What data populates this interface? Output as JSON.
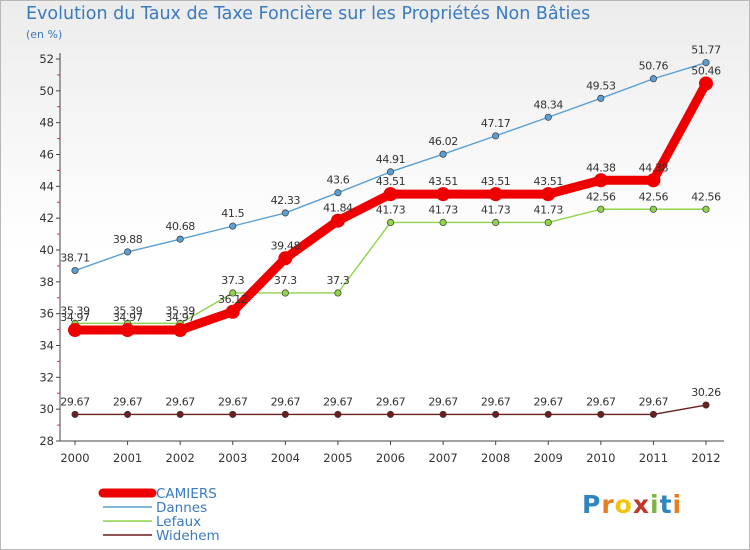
{
  "title": "Evolution du Taux de Taxe Foncière sur les Propriétés Non Bâties",
  "unit_label": "(en %)",
  "logo": {
    "text": "Proxiti",
    "letters": [
      "P",
      "r",
      "o",
      "x",
      "i",
      "t",
      "i"
    ],
    "colors": [
      "#2e86c1",
      "#e67e22",
      "#f1c40f",
      "#c0392b",
      "#7cb342",
      "#2e86c1",
      "#e67e22"
    ]
  },
  "chart_data": {
    "type": "line",
    "title": "Evolution du Taux de Taxe Foncière sur les Propriétés Non Bâties",
    "xlabel": "",
    "ylabel": "(en %)",
    "ylim": [
      28,
      52
    ],
    "yticks": [
      "28",
      "30",
      "32",
      "34",
      "36",
      "38",
      "40",
      "42",
      "44",
      "46",
      "48",
      "50",
      "52"
    ],
    "categories": [
      "2000",
      "2001",
      "2002",
      "2003",
      "2004",
      "2005",
      "2006",
      "2007",
      "2008",
      "2009",
      "2010",
      "2011",
      "2012"
    ],
    "series": [
      {
        "name": "Widehem",
        "color": "#6b1f1f",
        "values": [
          29.67,
          29.67,
          29.67,
          29.67,
          29.67,
          29.67,
          29.67,
          29.67,
          29.67,
          29.67,
          29.67,
          29.67,
          30.26
        ],
        "labels": [
          "29.67",
          "29.67",
          "29.67",
          "29.67",
          "29.67",
          "29.67",
          "29.67",
          "29.67",
          "29.67",
          "29.67",
          "29.67",
          "29.67",
          "30.26"
        ]
      },
      {
        "name": "Lefaux",
        "color": "#8fd44a",
        "values": [
          35.39,
          35.39,
          35.39,
          37.3,
          37.3,
          37.3,
          41.73,
          41.73,
          41.73,
          41.73,
          42.56,
          42.56,
          42.56
        ],
        "labels": [
          "35.39",
          "35.39",
          "35.39",
          "37.3",
          "37.3",
          "37.3",
          "41.73",
          "41.73",
          "41.73",
          "41.73",
          "42.56",
          "42.56",
          "42.56"
        ]
      },
      {
        "name": "Dannes",
        "color": "#5a9fd4",
        "values": [
          38.71,
          39.88,
          40.68,
          41.5,
          42.33,
          43.6,
          44.91,
          46.02,
          47.17,
          48.34,
          49.53,
          50.76,
          51.77
        ],
        "labels": [
          "38.71",
          "39.88",
          "40.68",
          "41.5",
          "42.33",
          "43.6",
          "44.91",
          "46.02",
          "47.17",
          "48.34",
          "49.53",
          "50.76",
          "51.77"
        ]
      },
      {
        "name": "CAMIERS",
        "color": "#ee0000",
        "values": [
          34.97,
          34.97,
          34.97,
          36.12,
          39.48,
          41.84,
          43.51,
          43.51,
          43.51,
          43.51,
          44.38,
          44.38,
          50.46
        ],
        "labels": [
          "34.97",
          "34.97",
          "34.97",
          "36.12",
          "39.48",
          "41.84",
          "43.51",
          "43.51",
          "43.51",
          "43.51",
          "44.38",
          "44.38",
          "50.46"
        ]
      }
    ],
    "legend": [
      "CAMIERS",
      "Dannes",
      "Lefaux",
      "Widehem"
    ],
    "legend_position": "bottom-left",
    "grid": false
  }
}
